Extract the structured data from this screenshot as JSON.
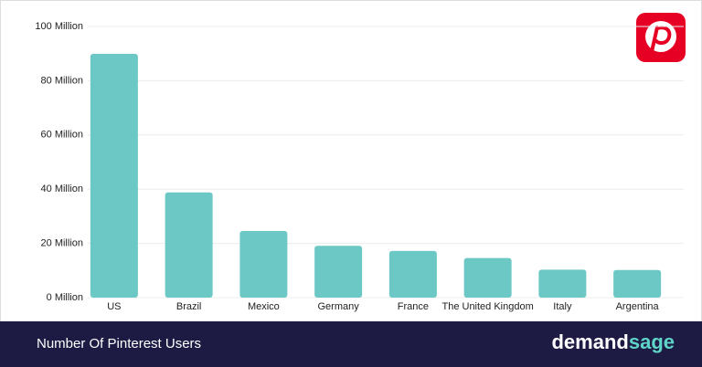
{
  "chart_data": {
    "type": "bar",
    "categories": [
      "US",
      "Brazil",
      "Mexico",
      "Germany",
      "France",
      "The United Kingdom",
      "Italy",
      "Argentina"
    ],
    "values": [
      89.9,
      38.8,
      24.6,
      19.1,
      17.2,
      14.6,
      10.3,
      10.2
    ],
    "color": "#6cc8c4",
    "ylim": [
      0,
      100
    ],
    "yticks": [
      {
        "value": 0,
        "label": "0 Million"
      },
      {
        "value": 20,
        "label": "20 Million"
      },
      {
        "value": 40,
        "label": "40 Million"
      },
      {
        "value": 60,
        "label": "60 Million"
      },
      {
        "value": 80,
        "label": "80 Million"
      },
      {
        "value": 100,
        "label": "100 Million"
      }
    ],
    "grid": true
  },
  "footer": {
    "caption": "Number Of Pinterest Users",
    "brand": [
      "demand",
      "sage"
    ]
  }
}
